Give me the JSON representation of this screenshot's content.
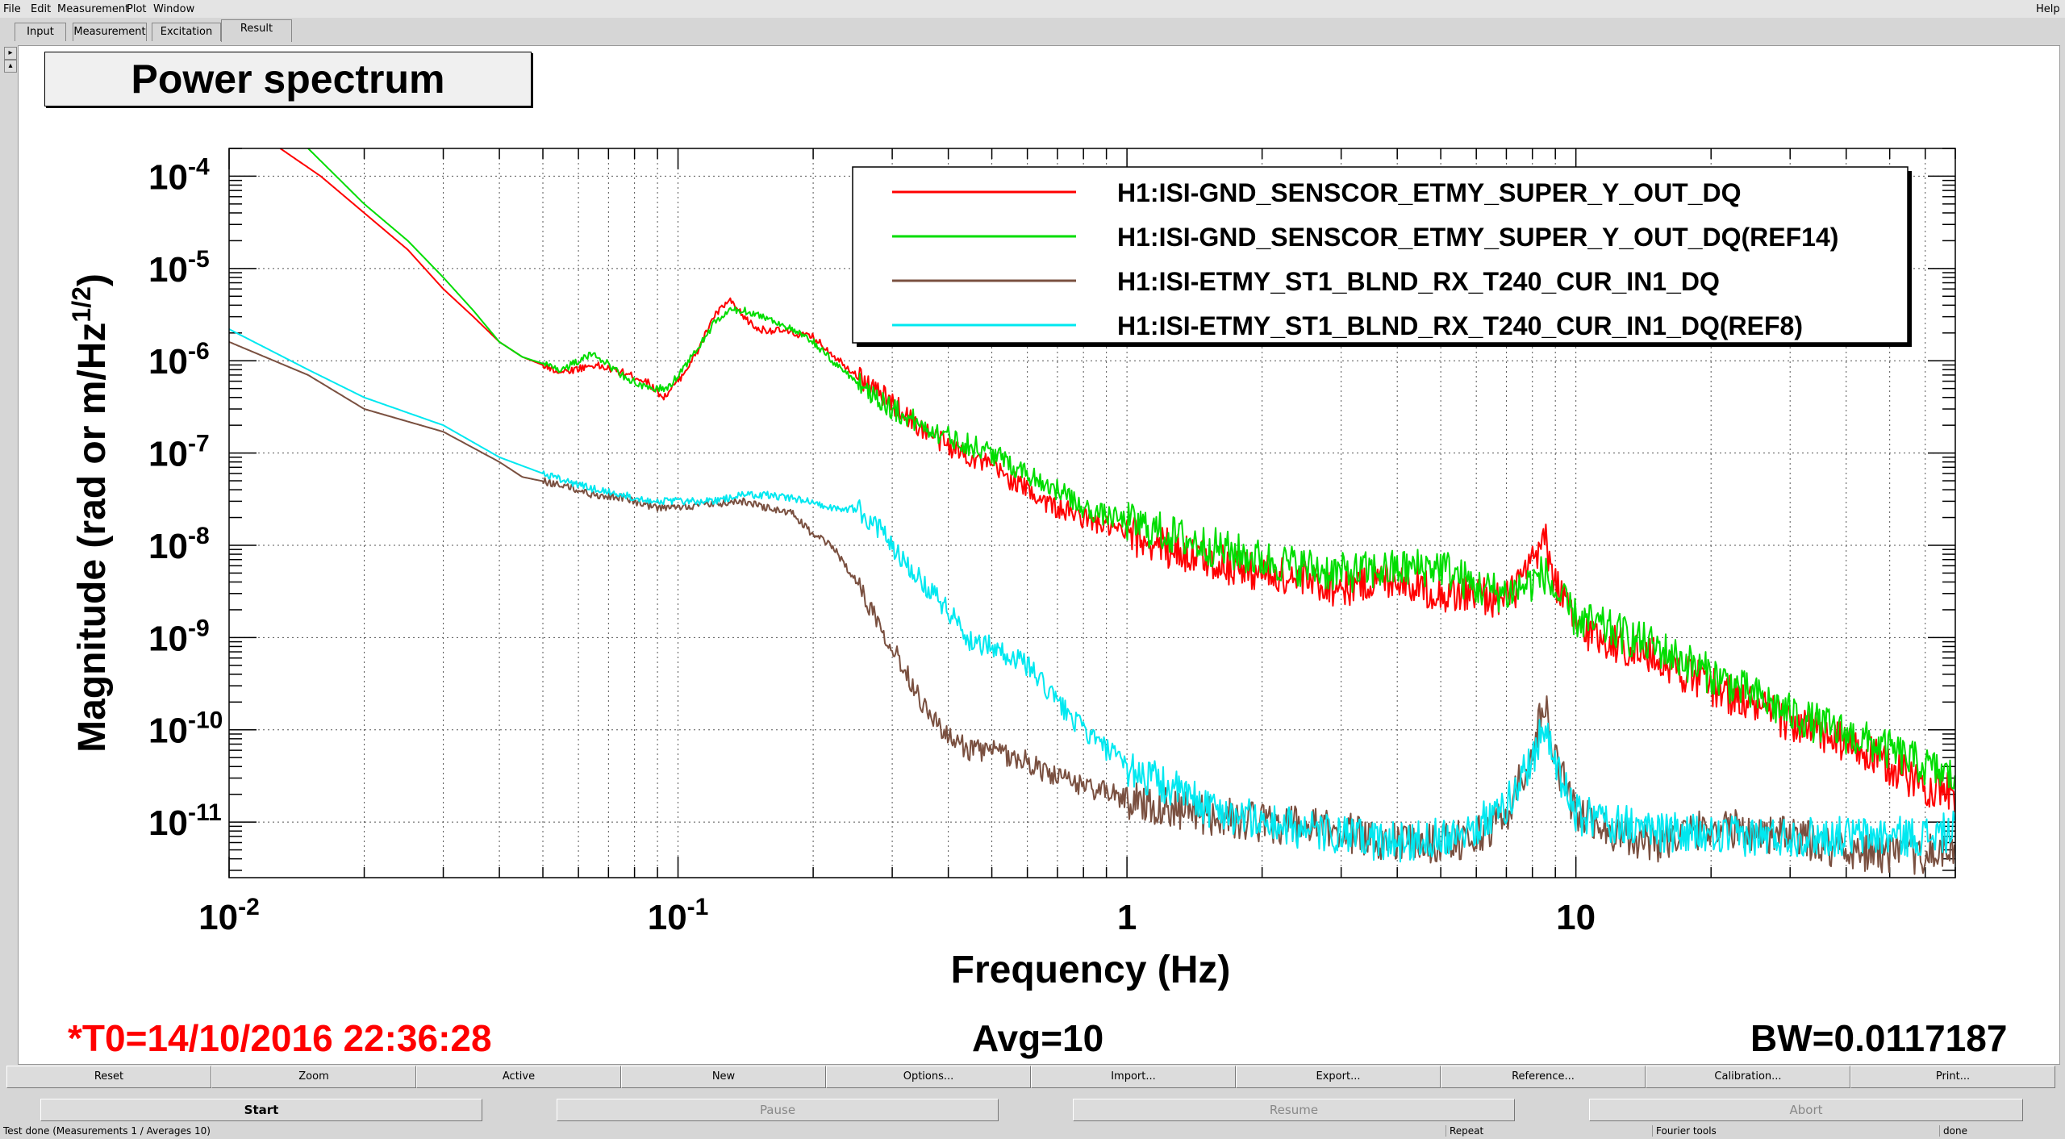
{
  "menu": [
    {
      "label": "File",
      "u": "F"
    },
    {
      "label": "Edit",
      "u": "E"
    },
    {
      "label": "Measurement",
      "u": "M"
    },
    {
      "label": "Plot",
      "u": "P"
    },
    {
      "label": "Window",
      "u": "W"
    }
  ],
  "help_label": "Help",
  "tabs": [
    "Input",
    "Measurement",
    "Excitation",
    "Result"
  ],
  "active_tab": "Result",
  "plot_title": "Power spectrum",
  "info": {
    "t0": "*T0=14/10/2016 22:36:28",
    "avg": "Avg=10",
    "bw": "BW=0.0117187"
  },
  "colors": {
    "red": "#ff0000",
    "green": "#00dd00",
    "brown": "#7a5040",
    "cyan": "#00e8f0",
    "t0_text": "#ff0000"
  },
  "buttons_row1": [
    "Reset",
    "Zoom",
    "Active",
    "New",
    "Options...",
    "Import...",
    "Export...",
    "Reference...",
    "Calibration...",
    "Print..."
  ],
  "buttons_row2": [
    {
      "label": "Start",
      "enabled": true
    },
    {
      "label": "Pause",
      "enabled": false
    },
    {
      "label": "Resume",
      "enabled": false
    },
    {
      "label": "Abort",
      "enabled": false
    }
  ],
  "status": {
    "main": "Test done (Measurements 1 / Averages 10)",
    "repeat": "Repeat",
    "tools": "Fourier tools",
    "state": "done"
  },
  "chart_data": {
    "type": "line",
    "title": "Power spectrum",
    "xlabel": "Frequency (Hz)",
    "ylabel": "Magnitude (rad or m/Hz",
    "ylabel_sup": "1/2",
    "ylabel_close": ")",
    "xscale": "log",
    "yscale": "log",
    "xlim": [
      0.01,
      70
    ],
    "ylim": [
      2.5e-12,
      0.0002
    ],
    "grid": true,
    "legend_position": "top-right",
    "xticks": [
      {
        "value": 0.01,
        "base": "10",
        "exp": "-2"
      },
      {
        "value": 0.1,
        "base": "10",
        "exp": "-1"
      },
      {
        "value": 1,
        "base": "1",
        "exp": ""
      },
      {
        "value": 10,
        "base": "10",
        "exp": ""
      }
    ],
    "yticks": [
      {
        "value": 0.0001,
        "base": "10",
        "exp": "-4"
      },
      {
        "value": 1e-05,
        "base": "10",
        "exp": "-5"
      },
      {
        "value": 1e-06,
        "base": "10",
        "exp": "-6"
      },
      {
        "value": 1e-07,
        "base": "10",
        "exp": "-7"
      },
      {
        "value": 1e-08,
        "base": "10",
        "exp": "-8"
      },
      {
        "value": 1e-09,
        "base": "10",
        "exp": "-9"
      },
      {
        "value": 1e-10,
        "base": "10",
        "exp": "-10"
      },
      {
        "value": 1e-11,
        "base": "10",
        "exp": "-11"
      }
    ],
    "series": [
      {
        "name": "H1:ISI-GND_SENSCOR_ETMY_SUPER_Y_OUT_DQ",
        "color": "#ff0000",
        "x": [
          0.013,
          0.016,
          0.02,
          0.025,
          0.03,
          0.035,
          0.04,
          0.045,
          0.055,
          0.065,
          0.075,
          0.085,
          0.093,
          0.1,
          0.11,
          0.12,
          0.13,
          0.14,
          0.15,
          0.17,
          0.2,
          0.22,
          0.25,
          0.3,
          0.35,
          0.4,
          0.5,
          0.6,
          0.7,
          0.8,
          1,
          1.5,
          2,
          3,
          4,
          5,
          6,
          7,
          8,
          8.5,
          9,
          10,
          12,
          15,
          20,
          30,
          40,
          50,
          60,
          70
        ],
        "y": [
          0.0002,
          0.0001,
          4e-05,
          1.6e-05,
          6e-06,
          3e-06,
          1.6e-06,
          1.1e-06,
          7.5e-07,
          9e-07,
          7.5e-07,
          6e-07,
          4e-07,
          6e-07,
          1.2e-06,
          3e-06,
          4.5e-06,
          3e-06,
          2.2e-06,
          2.1e-06,
          1.8e-06,
          1.2e-06,
          7e-07,
          3.5e-07,
          1.8e-07,
          1.2e-07,
          7e-08,
          4e-08,
          2.5e-08,
          2e-08,
          1.3e-08,
          7e-09,
          5e-09,
          3.5e-09,
          4.5e-09,
          3e-09,
          3e-09,
          2.5e-09,
          6e-09,
          1.2e-08,
          4e-09,
          1.3e-09,
          9e-10,
          6e-10,
          3e-10,
          1.2e-10,
          7e-11,
          4e-11,
          2.5e-11,
          2e-11
        ]
      },
      {
        "name": "H1:ISI-GND_SENSCOR_ETMY_SUPER_Y_OUT_DQ(REF14)",
        "color": "#00dd00",
        "x": [
          0.015,
          0.02,
          0.025,
          0.03,
          0.035,
          0.04,
          0.045,
          0.055,
          0.065,
          0.075,
          0.085,
          0.095,
          0.1,
          0.11,
          0.12,
          0.13,
          0.14,
          0.15,
          0.17,
          0.2,
          0.22,
          0.25,
          0.3,
          0.35,
          0.4,
          0.5,
          0.6,
          0.7,
          0.8,
          1,
          1.5,
          2,
          3,
          4,
          5,
          6,
          7,
          8,
          8.5,
          9,
          10,
          12,
          15,
          20,
          30,
          40,
          50,
          60,
          70
        ],
        "y": [
          0.0002,
          5e-05,
          2e-05,
          8e-06,
          3.5e-06,
          1.6e-06,
          1.1e-06,
          8e-07,
          1.2e-06,
          7e-07,
          5e-07,
          5e-07,
          7e-07,
          1.3e-06,
          2.5e-06,
          3.5e-06,
          3.5e-06,
          3.2e-06,
          2.5e-06,
          1.6e-06,
          1e-06,
          6e-07,
          3e-07,
          2e-07,
          1.5e-07,
          1e-07,
          6e-08,
          4e-08,
          2.5e-08,
          1.8e-08,
          1e-08,
          7e-09,
          5e-09,
          5.5e-09,
          6e-09,
          3.5e-09,
          3e-09,
          4e-09,
          5e-09,
          3e-09,
          1.6e-09,
          1.2e-09,
          8e-10,
          4e-10,
          1.5e-10,
          9e-11,
          6e-11,
          4e-11,
          3e-11
        ]
      },
      {
        "name": "H1:ISI-ETMY_ST1_BLND_RX_T240_CUR_IN1_DQ",
        "color": "#7a5040",
        "x": [
          0.01,
          0.015,
          0.02,
          0.03,
          0.04,
          0.045,
          0.055,
          0.065,
          0.075,
          0.09,
          0.1,
          0.12,
          0.14,
          0.16,
          0.18,
          0.2,
          0.22,
          0.25,
          0.28,
          0.3,
          0.35,
          0.4,
          0.45,
          0.5,
          0.6,
          0.7,
          0.8,
          1,
          1.5,
          2,
          3,
          4,
          5,
          6,
          7,
          8,
          8.5,
          9,
          10,
          12,
          15,
          20,
          30,
          40,
          50,
          60,
          70
        ],
        "y": [
          1.6e-06,
          7e-07,
          3e-07,
          1.7e-07,
          8e-08,
          5.5e-08,
          4.5e-08,
          3.5e-08,
          3.3e-08,
          2.5e-08,
          2.6e-08,
          2.8e-08,
          3e-08,
          2.5e-08,
          2.2e-08,
          1.3e-08,
          1e-08,
          4e-09,
          1.5e-09,
          8e-10,
          2e-10,
          8e-11,
          6e-11,
          6e-11,
          4.5e-11,
          3e-11,
          2.5e-11,
          1.8e-11,
          1.2e-11,
          1e-11,
          8e-12,
          6e-12,
          6e-12,
          7e-12,
          1.2e-11,
          6e-11,
          2e-10,
          5e-11,
          1.2e-11,
          8e-12,
          6e-12,
          9e-12,
          7e-12,
          5e-12,
          4.5e-12,
          4.5e-12,
          4.5e-12
        ]
      },
      {
        "name": "H1:ISI-ETMY_ST1_BLND_RX_T240_CUR_IN1_DQ(REF8)",
        "color": "#00e8f0",
        "x": [
          0.01,
          0.015,
          0.02,
          0.03,
          0.04,
          0.05,
          0.06,
          0.075,
          0.09,
          0.1,
          0.12,
          0.14,
          0.16,
          0.2,
          0.22,
          0.25,
          0.28,
          0.3,
          0.35,
          0.4,
          0.45,
          0.5,
          0.6,
          0.7,
          0.8,
          1,
          1.5,
          2,
          3,
          4,
          5,
          6,
          7,
          8,
          8.5,
          9,
          10,
          12,
          15,
          20,
          30,
          40,
          50,
          60,
          70
        ],
        "y": [
          2.2e-06,
          8e-07,
          4e-07,
          2e-07,
          9e-08,
          6e-08,
          4.5e-08,
          3.5e-08,
          3e-08,
          3e-08,
          3e-08,
          3.5e-08,
          3.5e-08,
          3e-08,
          2.5e-08,
          2.5e-08,
          1.5e-08,
          1e-08,
          4e-09,
          2e-09,
          9e-10,
          8e-10,
          5e-10,
          2e-10,
          1e-10,
          4e-11,
          1.5e-11,
          1e-11,
          7e-12,
          6e-12,
          7e-12,
          9e-12,
          1.5e-11,
          5e-11,
          1.2e-10,
          4e-11,
          1.2e-11,
          1e-11,
          8e-12,
          7e-12,
          7e-12,
          7e-12,
          7e-12,
          7e-12,
          8e-12
        ]
      }
    ]
  }
}
